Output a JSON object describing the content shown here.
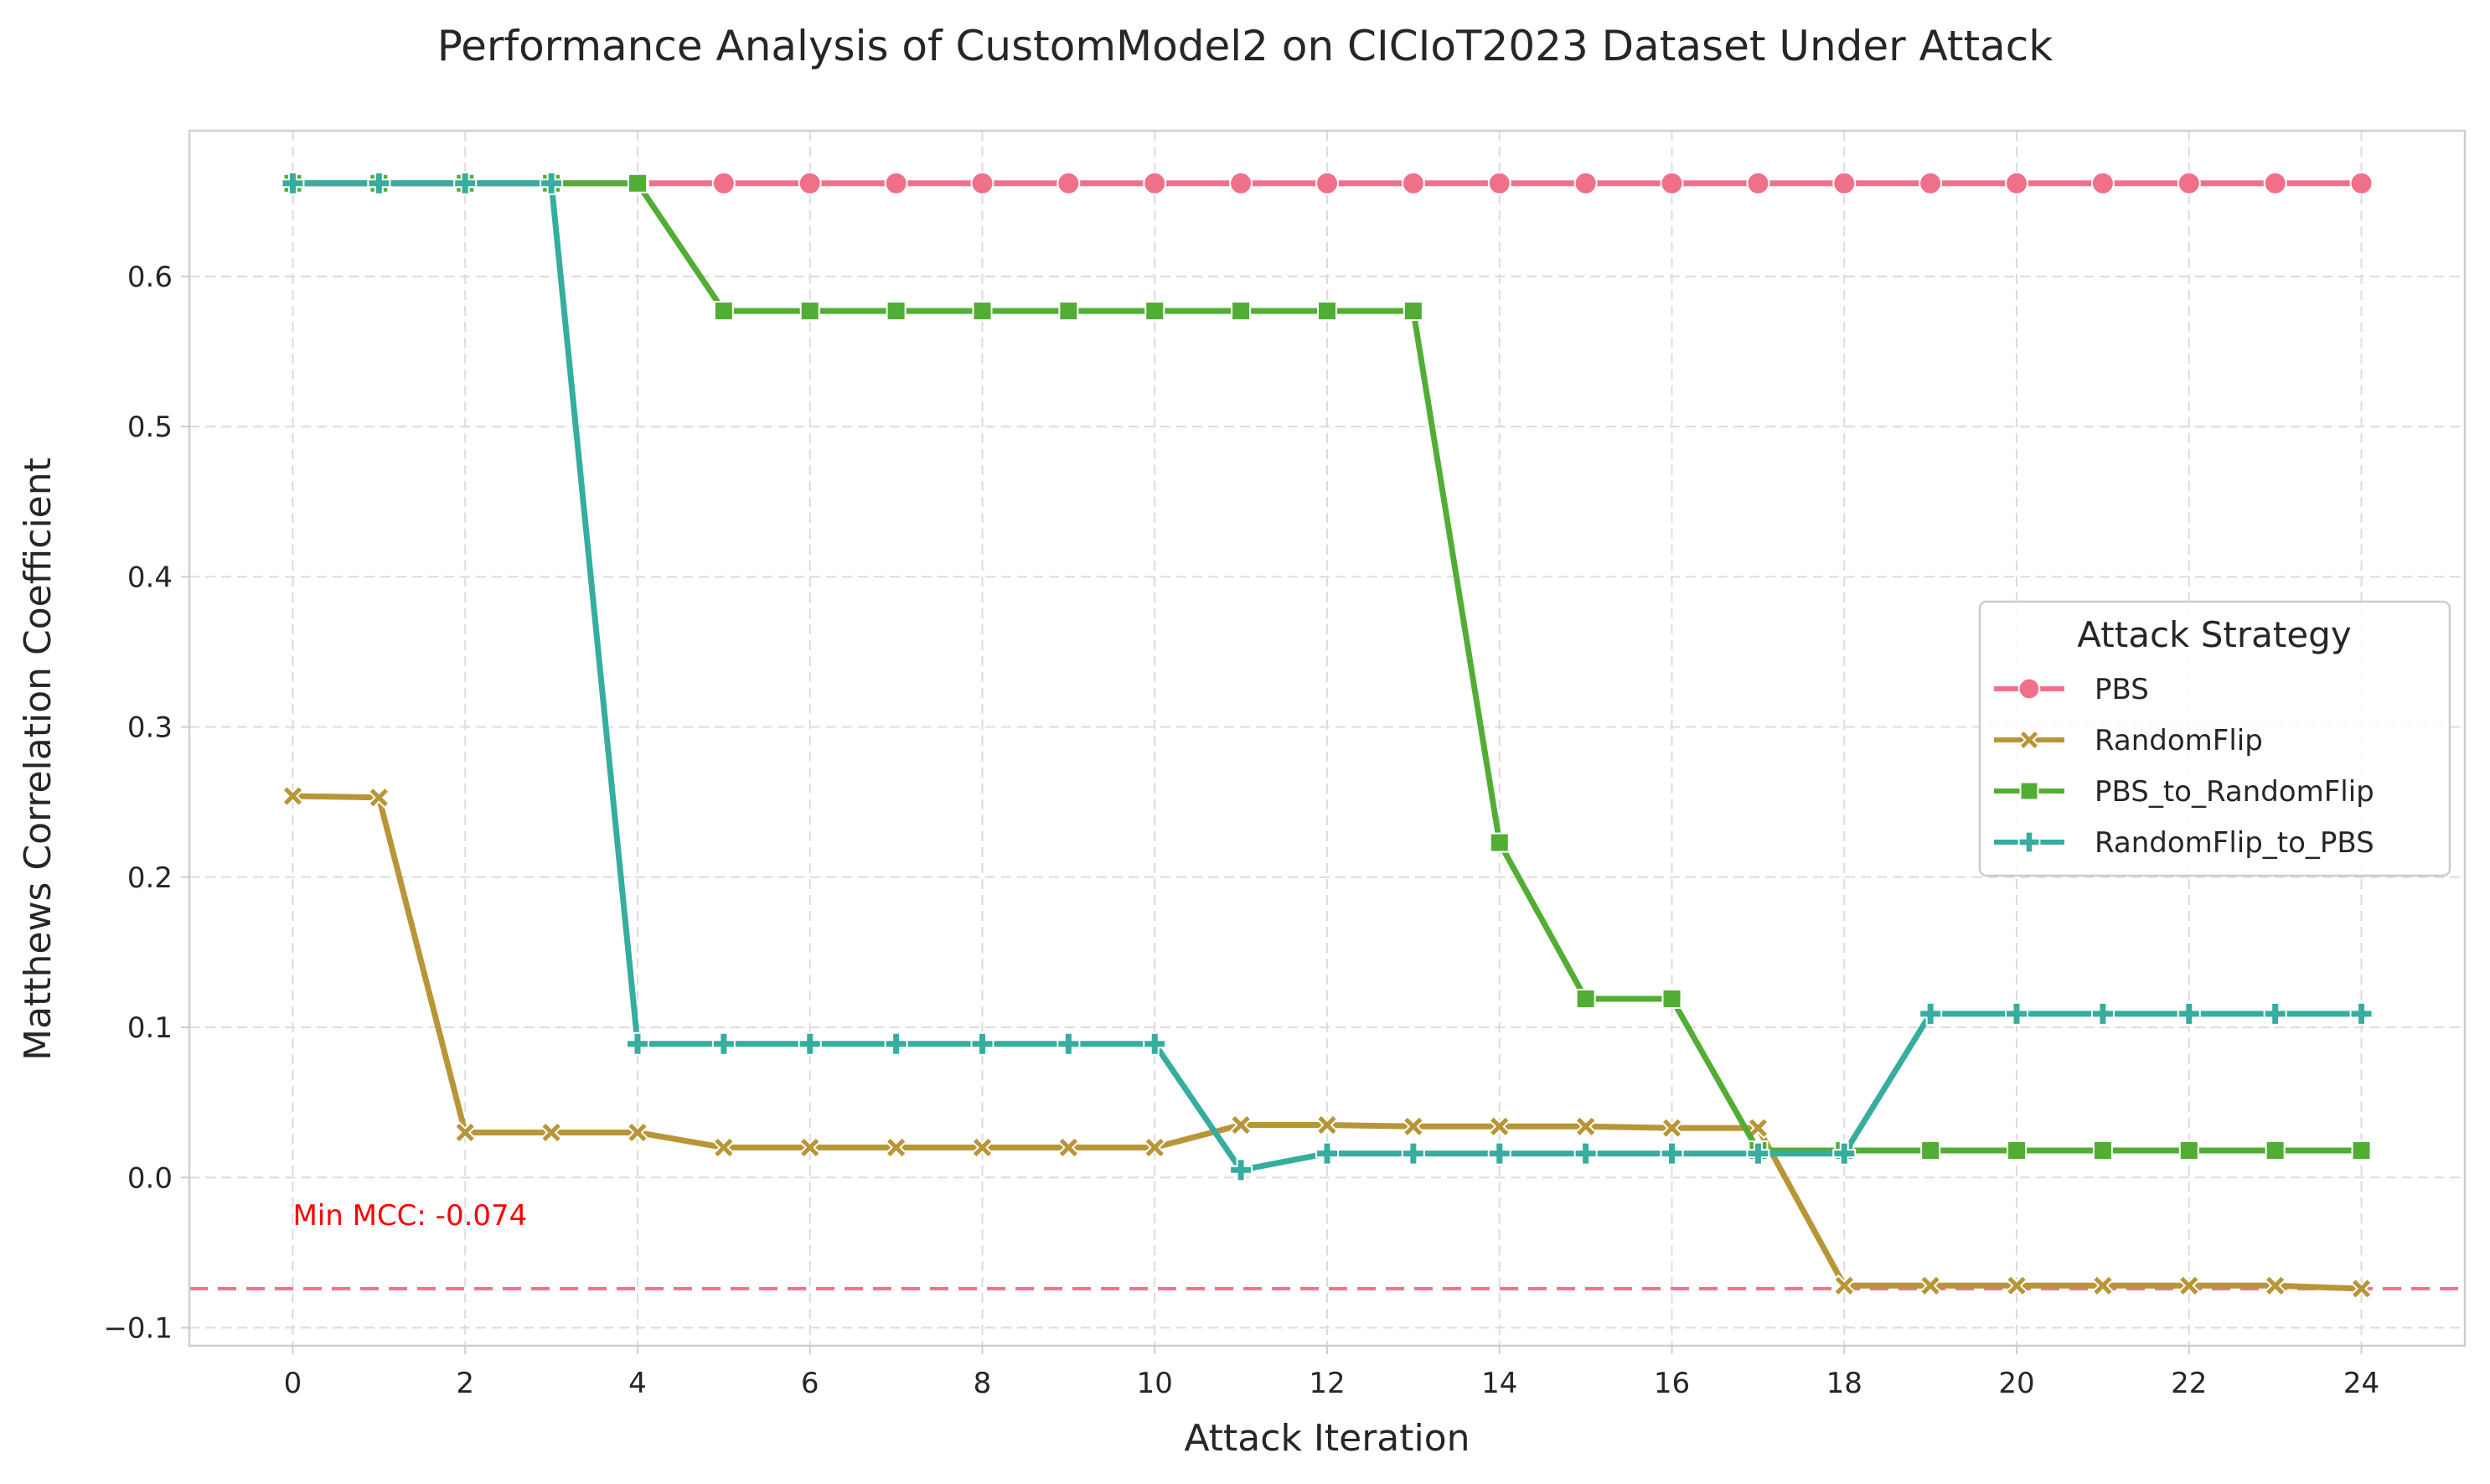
{
  "chart_data": {
    "type": "line",
    "title": "Performance Analysis of CustomModel2 on CICIoT2023 Dataset Under Attack",
    "xlabel": "Attack Iteration",
    "ylabel": "Matthews Correlation Coefficient",
    "xlim": [
      -1.2,
      25.2
    ],
    "ylim": [
      -0.112,
      0.697
    ],
    "xticks": [
      0,
      2,
      4,
      6,
      8,
      10,
      12,
      14,
      16,
      18,
      20,
      22,
      24
    ],
    "yticks": [
      -0.1,
      0.0,
      0.1,
      0.2,
      0.3,
      0.4,
      0.5,
      0.6
    ],
    "ytick_labels": [
      "−0.1",
      "0.0",
      "0.1",
      "0.2",
      "0.3",
      "0.4",
      "0.5",
      "0.6"
    ],
    "grid": true,
    "legend": {
      "title": "Attack Strategy",
      "placement": "center-right"
    },
    "x": [
      0,
      1,
      2,
      3,
      4,
      5,
      6,
      7,
      8,
      9,
      10,
      11,
      12,
      13,
      14,
      15,
      16,
      17,
      18,
      19,
      20,
      21,
      22,
      23,
      24
    ],
    "series": [
      {
        "name": "PBS",
        "color": "#f0708a",
        "marker": "circle",
        "values": [
          0.662,
          0.662,
          0.662,
          0.662,
          0.662,
          0.662,
          0.662,
          0.662,
          0.662,
          0.662,
          0.662,
          0.662,
          0.662,
          0.662,
          0.662,
          0.662,
          0.662,
          0.662,
          0.662,
          0.662,
          0.662,
          0.662,
          0.662,
          0.662,
          0.662
        ]
      },
      {
        "name": "RandomFlip",
        "color": "#b89537",
        "marker": "x",
        "values": [
          0.254,
          0.253,
          0.03,
          0.03,
          0.03,
          0.02,
          0.02,
          0.02,
          0.02,
          0.02,
          0.02,
          0.035,
          0.035,
          0.034,
          0.034,
          0.034,
          0.033,
          0.033,
          -0.072,
          -0.072,
          -0.072,
          -0.072,
          -0.072,
          -0.072,
          -0.074
        ]
      },
      {
        "name": "PBS_to_RandomFlip",
        "color": "#52ad35",
        "marker": "square",
        "values": [
          0.662,
          0.662,
          0.662,
          0.662,
          0.662,
          0.577,
          0.577,
          0.577,
          0.577,
          0.577,
          0.577,
          0.577,
          0.577,
          0.577,
          0.223,
          0.119,
          0.119,
          0.018,
          0.018,
          0.018,
          0.018,
          0.018,
          0.018,
          0.018,
          0.018
        ]
      },
      {
        "name": "RandomFlip_to_PBS",
        "color": "#36ad9e",
        "marker": "plus",
        "values": [
          0.662,
          0.662,
          0.662,
          0.662,
          0.089,
          0.089,
          0.089,
          0.089,
          0.089,
          0.089,
          0.089,
          0.005,
          0.016,
          0.016,
          0.016,
          0.016,
          0.016,
          0.016,
          0.016,
          0.109,
          0.109,
          0.109,
          0.109,
          0.109,
          0.109
        ]
      }
    ],
    "reference_line": {
      "y": -0.074,
      "color": "#f0708a",
      "style": "dashed"
    },
    "annotations": [
      {
        "text": "Min MCC: -0.074",
        "x": 0,
        "y": -0.025,
        "color": "#ff0000"
      }
    ]
  }
}
